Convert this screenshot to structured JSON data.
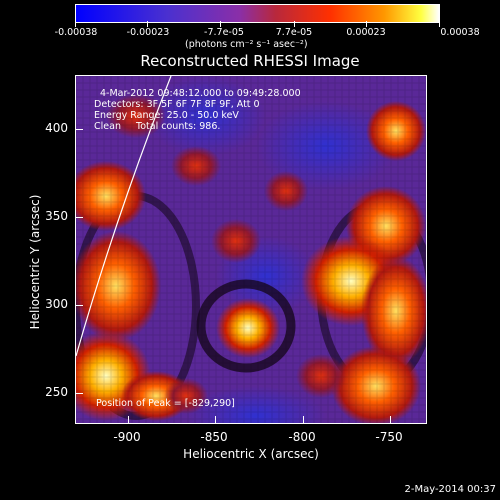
{
  "colorbar": {
    "tick_labels": [
      "-0.00038",
      "-0.00023",
      "-7.7e-05",
      "7.7e-05",
      "0.00023",
      "0.00038"
    ],
    "units": "(photons cm⁻² s⁻¹ asec⁻²)"
  },
  "title": "Reconstructed RHESSI Image",
  "annotations": {
    "time_range": "4-Mar-2012 09:48:12.000 to 09:49:28.000",
    "detectors": "Detectors: 3F 5F 6F 7F 8F 9F, Att 0",
    "energy": "Energy Range: 25.0 - 50.0 keV",
    "method": "Clean     Total counts: 986.",
    "peak": "Position of Peak = [-829,290]"
  },
  "axes": {
    "xlabel": "Heliocentric X (arcsec)",
    "ylabel": "Heliocentric Y (arcsec)",
    "x_ticks": [
      "-900",
      "-850",
      "-800",
      "-750"
    ],
    "y_ticks": [
      "400",
      "350",
      "300",
      "250"
    ]
  },
  "timestamp": "2-May-2014 00:37"
}
